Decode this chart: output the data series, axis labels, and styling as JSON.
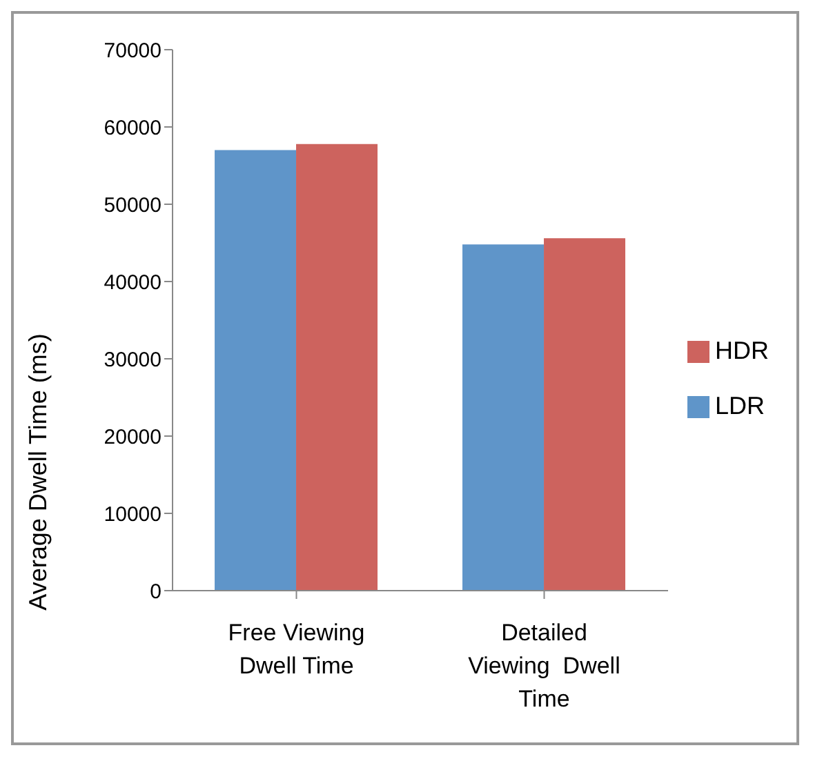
{
  "chart_data": {
    "type": "bar",
    "ylabel": "Average Dwell Time (ms)",
    "categories": [
      "Free Viewing Dwell Time",
      "Detailed Viewing  Dwell Time"
    ],
    "series": [
      {
        "name": "LDR",
        "color": "#5f95c9",
        "values": [
          57000,
          44800
        ]
      },
      {
        "name": "HDR",
        "color": "#cd635e",
        "values": [
          57800,
          45600
        ]
      }
    ],
    "ylim": [
      0,
      70000
    ],
    "yticks": [
      0,
      10000,
      20000,
      30000,
      40000,
      50000,
      60000,
      70000
    ],
    "grid": false,
    "legend": "right"
  }
}
